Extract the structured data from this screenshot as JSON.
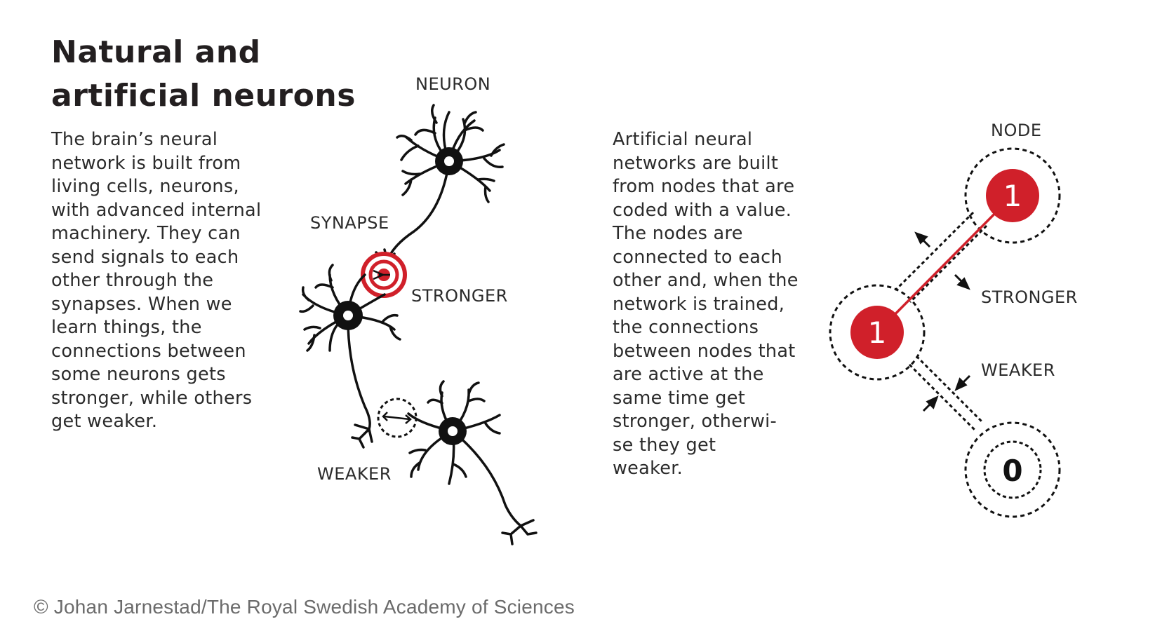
{
  "title": {
    "line1": "Natural and",
    "line2": "artificial neurons"
  },
  "left_text": "The brain’s neural\nnetwork is built from\nliving cells, neurons,\nwith advanced internal\nmachinery. They can\nsend signals to each\nother through the\nsynapses. When we\nlearn things, the\nconnections between\nsome neurons gets\nstronger, while others\nget weaker.",
  "right_text": "Artificial neural\nnetworks are built\nfrom nodes that are\ncoded with a value.\nThe nodes are\nconnected to each\nother and, when the\nnetwork is trained,\nthe connections\nbetween nodes that\nare active at the\nsame time get\nstronger, otherwi-\nse they get\nweaker.",
  "labels": {
    "neuron": "NEURON",
    "synapse": "SYNAPSE",
    "stronger_left": "STRONGER",
    "weaker_left": "WEAKER",
    "node": "NODE",
    "stronger_right": "STRONGER",
    "weaker_right": "WEAKER"
  },
  "nodes": {
    "top": "1",
    "middle": "1",
    "bottom": "0"
  },
  "credit": "© Johan Jarnestad/The Royal Swedish Academy of Sciences",
  "colors": {
    "accent_red": "#d0202a",
    "ink": "#111111",
    "text": "#2b2b2b",
    "credit": "#6b6b6b"
  }
}
